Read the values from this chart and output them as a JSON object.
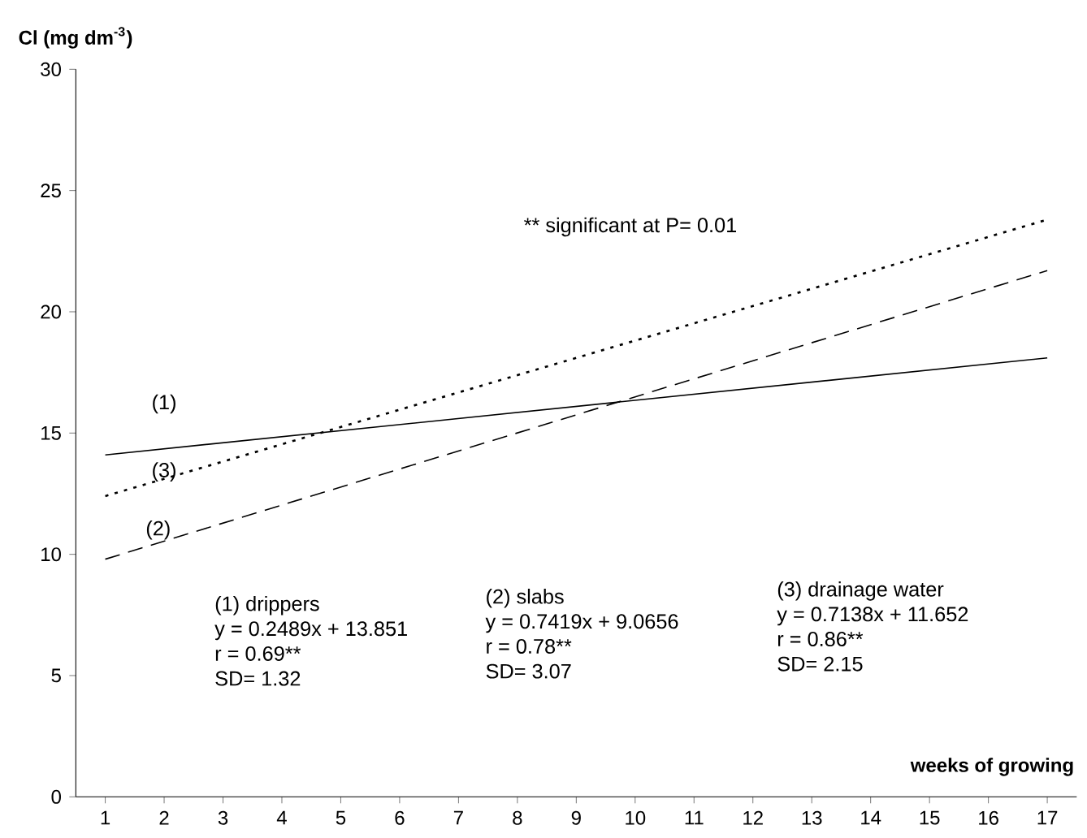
{
  "chart_data": {
    "type": "line",
    "ylabel": "Cl (mg dm$^{-3}$)",
    "xlabel": "**weeks of growing**",
    "xlim": [
      0.5,
      17.5
    ],
    "xticks": [
      1,
      2,
      3,
      4,
      5,
      6,
      7,
      8,
      9,
      10,
      11,
      12,
      13,
      14,
      15,
      16,
      17
    ],
    "ylim": [
      0,
      30
    ],
    "yticks": [
      0,
      5,
      10,
      15,
      20,
      25,
      30
    ],
    "grid": false,
    "marker": "none",
    "x": [
      1,
      17
    ],
    "series": [
      {
        "name": "(1)",
        "color": "#000000",
        "line_style": "solid",
        "values": [
          14.1,
          18.1
        ]
      },
      {
        "name": "(2)",
        "color": "#000000",
        "line_style": "dashed",
        "values": [
          9.8,
          21.7
        ]
      },
      {
        "name": "(3)",
        "color": "#000000",
        "line_style": "dotted",
        "values": [
          12.4,
          23.8
        ]
      }
    ],
    "annotations": [
      "** significant at P= 0.01",
      "(1) drippers",
      "y = 0.2489x + 13.851",
      "r = 0.69**",
      "SD= 1.32",
      "(2) slabs",
      "y = 0.7419x + 9.0656",
      "r = 0.78**",
      "SD= 3.07",
      "(3) drainage water",
      "y = 0.7138x + 11.652",
      "r = 0.86**",
      "SD= 2.15"
    ]
  }
}
